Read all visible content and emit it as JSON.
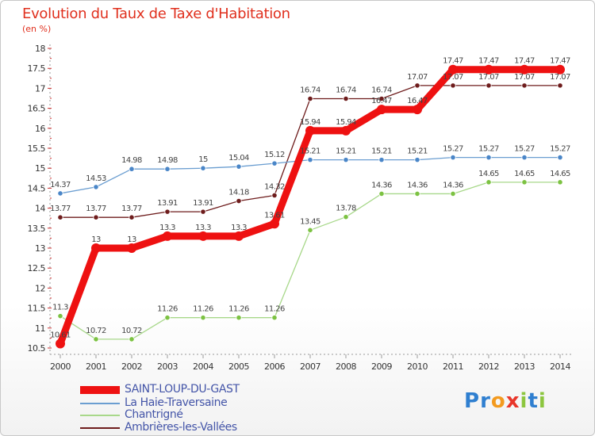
{
  "title": "Evolution du Taux de Taxe d'Habitation",
  "unit_label": "(en %)",
  "brand": {
    "letters": [
      {
        "ch": "P",
        "color": "#2f7fd0"
      },
      {
        "ch": "r",
        "color": "#2f7fd0"
      },
      {
        "ch": "o",
        "color": "#f39a1e"
      },
      {
        "ch": "x",
        "color": "#e8362a"
      },
      {
        "ch": "i",
        "color": "#8cc63f"
      },
      {
        "ch": "t",
        "color": "#2f7fd0"
      },
      {
        "ch": "i",
        "color": "#8cc63f"
      }
    ]
  },
  "chart_data": {
    "type": "line",
    "title": "Evolution du Taux de Taxe d'Habitation",
    "ylabel": "(en %)",
    "xlabel": "",
    "ylim": [
      10.5,
      18
    ],
    "yticks": [
      10.5,
      11,
      11.5,
      12,
      12.5,
      13,
      13.5,
      14,
      14.5,
      15,
      15.5,
      16,
      16.5,
      17,
      17.5,
      18
    ],
    "x": [
      "2000",
      "2001",
      "2002",
      "2003",
      "2004",
      "2005",
      "2006",
      "2007",
      "2008",
      "2009",
      "2010",
      "2011",
      "2012",
      "2013",
      "2014"
    ],
    "grid": false,
    "legend_position": "bottom-left",
    "series": [
      {
        "name": "Ambrières-les-Vallées",
        "color": "#6e1c1c",
        "point": "#6e1c1c",
        "values": [
          13.77,
          13.77,
          13.77,
          13.91,
          13.91,
          14.18,
          14.32,
          16.74,
          16.74,
          16.74,
          17.07,
          17.07,
          17.07,
          17.07,
          17.07
        ],
        "labels": [
          "13.77",
          "13.77",
          "13.77",
          "13.91",
          "13.91",
          "14.18",
          "14.32",
          "16.74",
          "16.74",
          "16.74",
          "17.07",
          "17.07",
          "17.07",
          "17.07",
          "17.07"
        ]
      },
      {
        "name": "La Haie-Traversaine",
        "color": "#6b9ed1",
        "point": "#4a86c8",
        "values": [
          14.37,
          14.53,
          14.98,
          14.98,
          15,
          15.04,
          15.12,
          15.21,
          15.21,
          15.21,
          15.21,
          15.27,
          15.27,
          15.27,
          15.27
        ],
        "labels": [
          "14.37",
          "14.53",
          "14.98",
          "14.98",
          "15",
          "15.04",
          "15.12",
          "15.21",
          "15.21",
          "15.21",
          "15.21",
          "15.27",
          "15.27",
          "15.27",
          "15.27"
        ]
      },
      {
        "name": "Chantrigné",
        "color": "#a8d88a",
        "point": "#7cc242",
        "values": [
          11.3,
          10.72,
          10.72,
          11.26,
          11.26,
          11.26,
          11.26,
          13.45,
          13.78,
          14.36,
          14.36,
          14.36,
          14.65,
          14.65,
          14.65
        ],
        "labels": [
          "11.3",
          "10.72",
          "10.72",
          "11.26",
          "11.26",
          "11.26",
          "11.26",
          "13.45",
          "13.78",
          "14.36",
          "14.36",
          "14.36",
          "14.65",
          "14.65",
          "14.65"
        ]
      },
      {
        "name": "SAINT-LOUP-DU-GAST",
        "color": "#ee1111",
        "point": "#ee1111",
        "values": [
          10.61,
          13,
          13,
          13.3,
          13.3,
          13.3,
          13.61,
          15.94,
          15.94,
          16.47,
          16.47,
          17.47,
          17.47,
          17.47,
          17.47
        ],
        "labels": [
          "10.61",
          "13",
          "13",
          "13.3",
          "13.3",
          "13.3",
          "13.61",
          "15.94",
          "15.94",
          "16.47",
          "16.47",
          "17.47",
          "17.47",
          "17.47",
          "17.47"
        ]
      }
    ]
  }
}
